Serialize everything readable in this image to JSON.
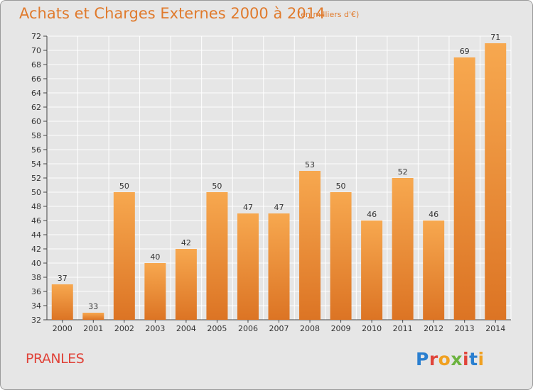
{
  "header": {
    "title": "Achats et Charges Externes 2000 à 2014",
    "subtitle": "(en milliers d'€)"
  },
  "footer": {
    "commune": "PRANLES",
    "logo_text": "Proxiti",
    "logo_colors": [
      "#2a7fd0",
      "#e0443a",
      "#f0a020",
      "#6cb33f",
      "#e0443a",
      "#2a7fd0",
      "#f0a020"
    ]
  },
  "colors": {
    "bar_top": "#f7a84f",
    "bar_bottom": "#dc7424",
    "accent": "#e07a2c",
    "background": "#e6e6e6",
    "grid": "#ffffff"
  },
  "chart_data": {
    "type": "bar",
    "categories": [
      "2000",
      "2001",
      "2002",
      "2003",
      "2004",
      "2005",
      "2006",
      "2007",
      "2008",
      "2009",
      "2010",
      "2011",
      "2012",
      "2013",
      "2014"
    ],
    "values": [
      37,
      33,
      50,
      40,
      42,
      50,
      47,
      47,
      53,
      50,
      46,
      52,
      46,
      69,
      71
    ],
    "ylim": [
      32,
      72
    ],
    "ytick_step": 2,
    "grid": true,
    "data_labels": true
  }
}
